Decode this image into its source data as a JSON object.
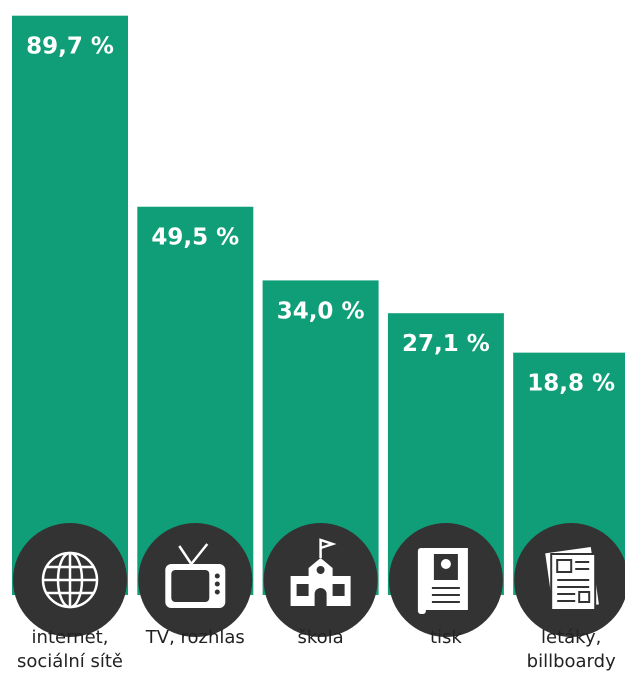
{
  "chart_data": {
    "type": "bar",
    "categories": [
      "internet, sociální sítě",
      "TV, rozhlas",
      "škola",
      "tisk",
      "letáky, billboardy"
    ],
    "values": [
      89.7,
      49.5,
      34.0,
      27.1,
      18.8
    ],
    "value_labels": [
      "89,7 %",
      "49,5 %",
      "34,0 %",
      "27,1 %",
      "18,8 %"
    ],
    "color": "#0f9e78",
    "ylim": [
      0,
      93
    ]
  }
}
